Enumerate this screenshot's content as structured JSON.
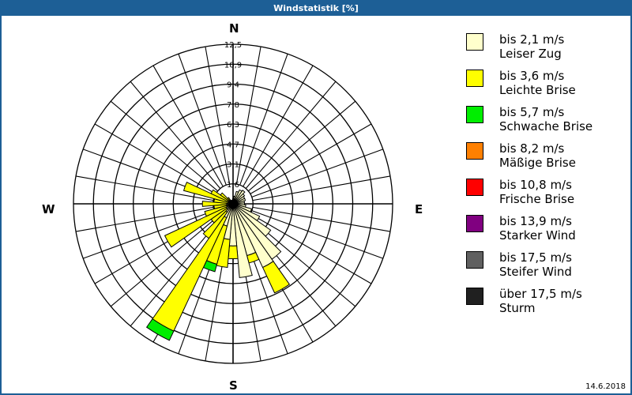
{
  "window": {
    "title": "Windstatistik [%]",
    "date": "14.6.2018"
  },
  "compass": {
    "north": "N",
    "south": "S",
    "east": "E",
    "west": "W"
  },
  "legend": [
    {
      "speed": "bis 2,1 m/s",
      "name": "Leiser Zug",
      "color": "#ffffcc"
    },
    {
      "speed": "bis 3,6 m/s",
      "name": "Leichte Brise",
      "color": "#ffff00"
    },
    {
      "speed": "bis 5,7 m/s",
      "name": "Schwache Brise",
      "color": "#00ee00"
    },
    {
      "speed": "bis 8,2 m/s",
      "name": "Mäßige Brise",
      "color": "#ff8000"
    },
    {
      "speed": "bis 10,8 m/s",
      "name": "Frische Brise",
      "color": "#ff0000"
    },
    {
      "speed": "bis 13,9 m/s",
      "name": "Starker Wind",
      "color": "#800080"
    },
    {
      "speed": "bis 17,5 m/s",
      "name": "Steifer Wind",
      "color": "#606060"
    },
    {
      "speed": "über 17,5 m/s",
      "name": "Sturm",
      "color": "#202020"
    }
  ],
  "chart_data": {
    "type": "wind-rose",
    "title": "Windstatistik [%]",
    "radial_ticks": [
      "1,6",
      "3,1",
      "4,7",
      "6,3",
      "7,8",
      "9,4",
      "10,9",
      "12,5"
    ],
    "rmax": 12.5,
    "sector_width_deg": 10,
    "series_names": [
      "bis 2,1 m/s",
      "bis 3,6 m/s",
      "bis 5,7 m/s"
    ],
    "sectors": [
      {
        "dir": 0,
        "values": [
          0.4,
          0,
          0
        ]
      },
      {
        "dir": 10,
        "values": [
          0.6,
          0,
          0
        ]
      },
      {
        "dir": 20,
        "values": [
          1.0,
          0,
          0
        ]
      },
      {
        "dir": 30,
        "values": [
          1.2,
          0,
          0
        ]
      },
      {
        "dir": 40,
        "values": [
          1.3,
          0,
          0
        ]
      },
      {
        "dir": 50,
        "values": [
          1.1,
          0,
          0
        ]
      },
      {
        "dir": 60,
        "values": [
          1.0,
          0,
          0
        ]
      },
      {
        "dir": 70,
        "values": [
          1.0,
          0,
          0
        ]
      },
      {
        "dir": 80,
        "values": [
          0.9,
          0,
          0
        ]
      },
      {
        "dir": 90,
        "values": [
          0.9,
          0,
          0
        ]
      },
      {
        "dir": 100,
        "values": [
          1.0,
          0,
          0
        ]
      },
      {
        "dir": 110,
        "values": [
          1.5,
          0,
          0
        ]
      },
      {
        "dir": 120,
        "values": [
          2.3,
          0,
          0
        ]
      },
      {
        "dir": 130,
        "values": [
          3.6,
          0,
          0
        ]
      },
      {
        "dir": 140,
        "values": [
          5.3,
          0,
          0
        ]
      },
      {
        "dir": 150,
        "values": [
          5.5,
          2.2,
          0
        ]
      },
      {
        "dir": 160,
        "values": [
          4.2,
          0.6,
          0
        ]
      },
      {
        "dir": 170,
        "values": [
          5.8,
          0,
          0
        ]
      },
      {
        "dir": 180,
        "values": [
          3.3,
          1.0,
          0
        ]
      },
      {
        "dir": 190,
        "values": [
          2.8,
          2.2,
          0
        ]
      },
      {
        "dir": 200,
        "values": [
          1.8,
          3.1,
          0.6
        ]
      },
      {
        "dir": 210,
        "values": [
          1.2,
          9.8,
          0.8
        ]
      },
      {
        "dir": 220,
        "values": [
          0.8,
          2.5,
          0
        ]
      },
      {
        "dir": 230,
        "values": [
          0.6,
          1.5,
          0
        ]
      },
      {
        "dir": 240,
        "values": [
          0.6,
          5.3,
          0
        ]
      },
      {
        "dir": 250,
        "values": [
          0.5,
          1.8,
          0
        ]
      },
      {
        "dir": 260,
        "values": [
          0.5,
          1.0,
          0
        ]
      },
      {
        "dir": 270,
        "values": [
          0.5,
          1.9,
          0
        ]
      },
      {
        "dir": 280,
        "values": [
          0.4,
          1.1,
          0
        ]
      },
      {
        "dir": 290,
        "values": [
          0.4,
          3.6,
          0
        ]
      },
      {
        "dir": 300,
        "values": [
          0.4,
          1.5,
          0
        ]
      },
      {
        "dir": 310,
        "values": [
          0.3,
          0.9,
          0
        ]
      },
      {
        "dir": 320,
        "values": [
          0.3,
          0.3,
          0
        ]
      },
      {
        "dir": 330,
        "values": [
          0.3,
          0,
          0
        ]
      },
      {
        "dir": 340,
        "values": [
          0.3,
          0,
          0
        ]
      },
      {
        "dir": 350,
        "values": [
          0.3,
          0,
          0
        ]
      }
    ]
  }
}
